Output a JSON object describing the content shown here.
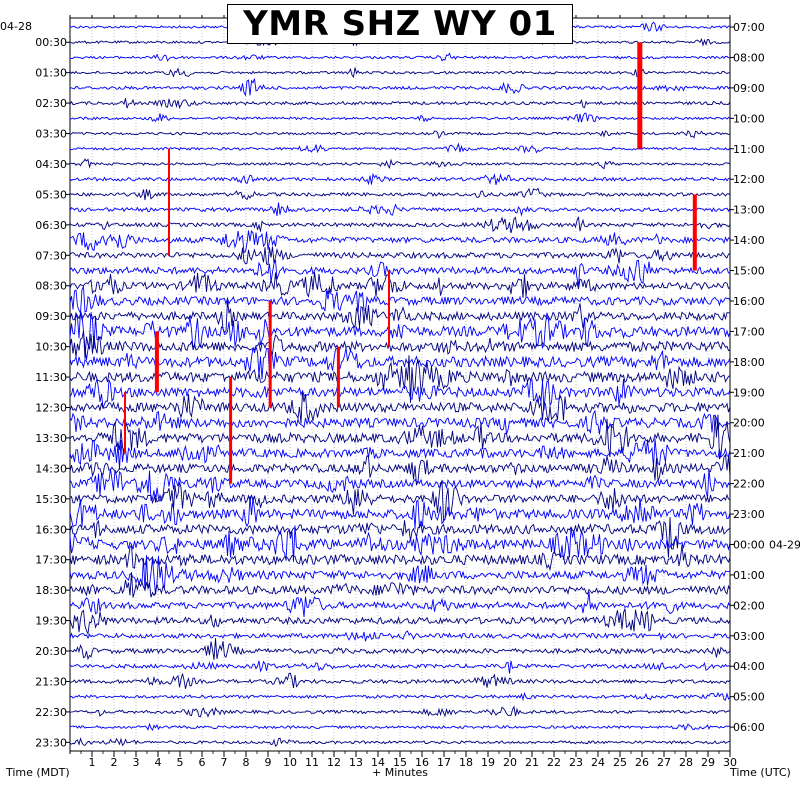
{
  "title": "YMR SHZ WY 01",
  "date_left": "04-28",
  "date_right": "04-29",
  "chart_data": {
    "type": "line",
    "title": "YMR SHZ WY 01",
    "xlabel": "+ Minutes",
    "ylabel_left": "Time (MDT)",
    "ylabel_right": "Time (UTC)",
    "xlim": [
      0,
      30
    ],
    "x_ticks": [
      1,
      2,
      3,
      4,
      5,
      6,
      7,
      8,
      9,
      10,
      11,
      12,
      13,
      14,
      15,
      16,
      17,
      18,
      19,
      20,
      21,
      22,
      23,
      24,
      25,
      26,
      27,
      28,
      29,
      30
    ],
    "left_labels": [
      "00:30",
      "01:30",
      "02:30",
      "03:30",
      "04:30",
      "05:30",
      "06:30",
      "07:30",
      "08:30",
      "09:30",
      "10:30",
      "11:30",
      "12:30",
      "13:30",
      "14:30",
      "15:30",
      "16:30",
      "17:30",
      "18:30",
      "19:30",
      "20:30",
      "21:30",
      "22:30",
      "23:30"
    ],
    "right_labels": [
      "07:00",
      "08:00",
      "09:00",
      "10:00",
      "11:00",
      "12:00",
      "13:00",
      "14:00",
      "15:00",
      "16:00",
      "17:00",
      "18:00",
      "19:00",
      "20:00",
      "21:00",
      "22:00",
      "23:00",
      "00:00",
      "01:00",
      "02:00",
      "03:00",
      "04:00",
      "05:00",
      "06:00"
    ],
    "traces_per_hour": 2,
    "trace_colors": [
      "#0000ff",
      "#000080"
    ],
    "clip_color": "#ff0000",
    "grid": true,
    "grid_style": "dotted",
    "noise_level_by_hour": [
      0.3,
      0.3,
      0.45,
      0.3,
      0.3,
      0.5,
      0.6,
      1.0,
      1.3,
      1.6,
      2.0,
      2.1,
      1.9,
      1.9,
      1.7,
      1.6,
      1.9,
      2.0,
      1.6,
      1.2,
      0.8,
      0.6,
      0.45,
      0.35
    ]
  }
}
